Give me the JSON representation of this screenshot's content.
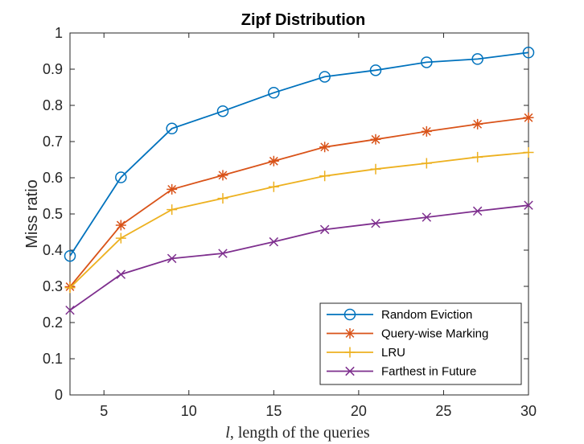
{
  "chart_data": {
    "type": "line",
    "title": "Zipf Distribution",
    "xlabel_var": "l",
    "xlabel_rest": ", length of the queries",
    "ylabel": "Miss ratio",
    "xlim": [
      3,
      30
    ],
    "ylim": [
      0,
      1
    ],
    "xticks": [
      5,
      10,
      15,
      20,
      25,
      30
    ],
    "yticks": [
      0,
      0.1,
      0.2,
      0.3,
      0.4,
      0.5,
      0.6,
      0.7,
      0.8,
      0.9,
      1
    ],
    "ytick_labels": [
      "0",
      "0.1",
      "0.2",
      "0.3",
      "0.4",
      "0.5",
      "0.6",
      "0.7",
      "0.8",
      "0.9",
      "1"
    ],
    "grid": false,
    "legend_position": "bottom-right",
    "x": [
      3,
      6,
      9,
      12,
      15,
      18,
      21,
      24,
      27,
      30
    ],
    "series": [
      {
        "name": "Random Eviction",
        "color": "#0072BD",
        "marker": "circle",
        "values": [
          0.384,
          0.601,
          0.736,
          0.784,
          0.835,
          0.879,
          0.897,
          0.919,
          0.928,
          0.946
        ]
      },
      {
        "name": "Query-wise Marking",
        "color": "#D95319",
        "marker": "asterisk",
        "values": [
          0.299,
          0.469,
          0.568,
          0.607,
          0.646,
          0.685,
          0.706,
          0.728,
          0.748,
          0.766
        ]
      },
      {
        "name": "LRU",
        "color": "#EDB120",
        "marker": "plus",
        "values": [
          0.296,
          0.433,
          0.512,
          0.543,
          0.575,
          0.605,
          0.624,
          0.64,
          0.657,
          0.67
        ]
      },
      {
        "name": "Farthest in Future",
        "color": "#7E2F8E",
        "marker": "cross",
        "values": [
          0.234,
          0.333,
          0.377,
          0.391,
          0.423,
          0.457,
          0.474,
          0.491,
          0.508,
          0.524
        ]
      }
    ]
  }
}
